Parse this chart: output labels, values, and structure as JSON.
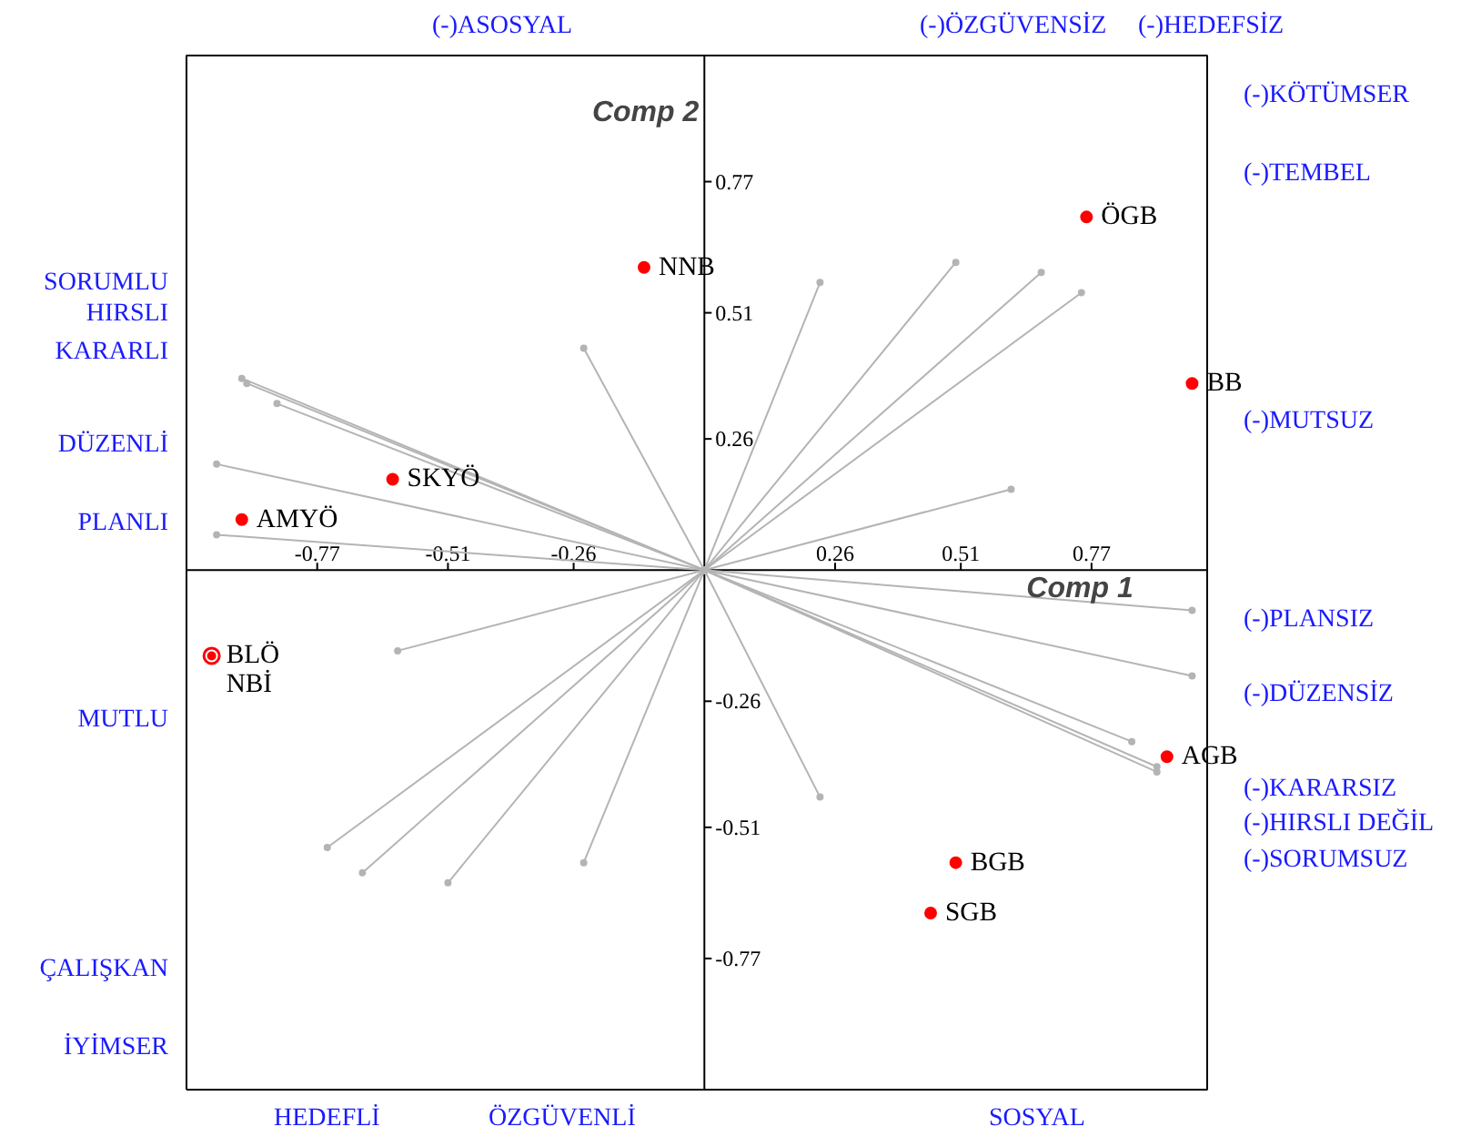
{
  "chart_data": {
    "type": "scatter",
    "xlabel": "Comp 1",
    "ylabel": "Comp 2",
    "xlim": [
      -1.03,
      1.0
    ],
    "ylim": [
      -1.03,
      1.02
    ],
    "xticks": [
      -0.77,
      -0.51,
      -0.26,
      0.26,
      0.51,
      0.77
    ],
    "yticks": [
      -0.77,
      -0.51,
      -0.26,
      0.26,
      0.51,
      0.77
    ],
    "grid": false,
    "marker": "circle",
    "series": [
      {
        "type": "line",
        "color": "#b4b4b4",
        "x": [
          0,
          -0.92
        ],
        "values": [
          0,
          0.38
        ]
      },
      {
        "type": "line",
        "color": "#b4b4b4",
        "x": [
          0,
          -0.91
        ],
        "values": [
          0,
          0.37
        ]
      },
      {
        "type": "line",
        "color": "#b4b4b4",
        "x": [
          0,
          -0.85
        ],
        "values": [
          0,
          0.33
        ]
      },
      {
        "type": "line",
        "color": "#b4b4b4",
        "x": [
          0,
          -0.97
        ],
        "values": [
          0,
          0.21
        ]
      },
      {
        "type": "line",
        "color": "#b4b4b4",
        "x": [
          0,
          -0.97
        ],
        "values": [
          0,
          0.07
        ]
      },
      {
        "type": "line",
        "color": "#b4b4b4",
        "x": [
          0,
          -0.24
        ],
        "values": [
          0,
          0.44
        ]
      },
      {
        "type": "line",
        "color": "#b4b4b4",
        "x": [
          0,
          0.23
        ],
        "values": [
          0,
          0.57
        ]
      },
      {
        "type": "line",
        "color": "#b4b4b4",
        "x": [
          0,
          0.5
        ],
        "values": [
          0,
          0.61
        ]
      },
      {
        "type": "line",
        "color": "#b4b4b4",
        "x": [
          0,
          0.67
        ],
        "values": [
          0,
          0.59
        ]
      },
      {
        "type": "line",
        "color": "#b4b4b4",
        "x": [
          0,
          0.75
        ],
        "values": [
          0,
          0.55
        ]
      },
      {
        "type": "line",
        "color": "#b4b4b4",
        "x": [
          0,
          0.61
        ],
        "values": [
          0,
          0.16
        ]
      },
      {
        "type": "line",
        "color": "#b4b4b4",
        "x": [
          0,
          0.97
        ],
        "values": [
          0,
          -0.08
        ]
      },
      {
        "type": "line",
        "color": "#b4b4b4",
        "x": [
          0,
          0.97
        ],
        "values": [
          0,
          -0.21
        ]
      },
      {
        "type": "line",
        "color": "#b4b4b4",
        "x": [
          0,
          0.85
        ],
        "values": [
          0,
          -0.34
        ]
      },
      {
        "type": "line",
        "color": "#b4b4b4",
        "x": [
          0,
          0.9
        ],
        "values": [
          0,
          -0.39
        ]
      },
      {
        "type": "line",
        "color": "#b4b4b4",
        "x": [
          0,
          0.9
        ],
        "values": [
          0,
          -0.4
        ]
      },
      {
        "type": "line",
        "color": "#b4b4b4",
        "x": [
          0,
          0.23
        ],
        "values": [
          0,
          -0.45
        ]
      },
      {
        "type": "line",
        "color": "#b4b4b4",
        "x": [
          0,
          -0.61
        ],
        "values": [
          0,
          -0.16
        ]
      },
      {
        "type": "line",
        "color": "#b4b4b4",
        "x": [
          0,
          -0.75
        ],
        "values": [
          0,
          -0.55
        ]
      },
      {
        "type": "line",
        "color": "#b4b4b4",
        "x": [
          0,
          -0.68
        ],
        "values": [
          0,
          -0.6
        ]
      },
      {
        "type": "line",
        "color": "#b4b4b4",
        "x": [
          0,
          -0.51
        ],
        "values": [
          0,
          -0.62
        ]
      },
      {
        "type": "line",
        "color": "#b4b4b4",
        "x": [
          0,
          -0.24
        ],
        "values": [
          0,
          -0.58
        ]
      },
      {
        "name": "ÖGB",
        "color": "#ff0000",
        "x": [
          0.76
        ],
        "values": [
          0.7
        ]
      },
      {
        "name": "BB",
        "color": "#ff0000",
        "x": [
          0.97
        ],
        "values": [
          0.37
        ]
      },
      {
        "name": "NNB",
        "color": "#ff0000",
        "x": [
          -0.12
        ],
        "values": [
          0.6
        ]
      },
      {
        "name": "SKYÖ",
        "color": "#ff0000",
        "x": [
          -0.62
        ],
        "values": [
          0.18
        ]
      },
      {
        "name": "AMYÖ",
        "color": "#ff0000",
        "x": [
          -0.92
        ],
        "values": [
          0.1
        ]
      },
      {
        "name": "BLÖ",
        "color": "#ff0000",
        "x": [
          -0.98
        ],
        "values": [
          -0.17
        ]
      },
      {
        "name": "NBİ",
        "color": "#ff0000",
        "x": [
          -0.98
        ],
        "values": [
          -0.17
        ]
      },
      {
        "name": "AGB",
        "color": "#ff0000",
        "x": [
          0.92
        ],
        "values": [
          -0.37
        ]
      },
      {
        "name": "BGB",
        "color": "#ff0000",
        "x": [
          0.5
        ],
        "values": [
          -0.58
        ]
      },
      {
        "name": "SGB",
        "color": "#ff0000",
        "x": [
          0.45
        ],
        "values": [
          -0.68
        ]
      }
    ],
    "annotations": [
      "(-)ASOSYAL",
      "(-)ÖZGÜVENSİZ",
      "(-)HEDEFSİZ",
      "(-)KÖTÜMSER",
      "(-)TEMBEL",
      "(-)MUTSUZ",
      "(-)PLANSIZ",
      "(-)DÜZENSİZ",
      "(-)KARARSIZ",
      "(-)HIRSLI DEĞİL",
      "(-)SORUMSUZ",
      "SORUMLU",
      "HIRSLI",
      "KARARLI",
      "DÜZENLİ",
      "PLANLI",
      "MUTLU",
      "ÇALIŞKAN",
      "İYİMSER",
      "HEDEFLİ",
      "ÖZGÜVENLİ",
      "SOSYAL"
    ]
  }
}
